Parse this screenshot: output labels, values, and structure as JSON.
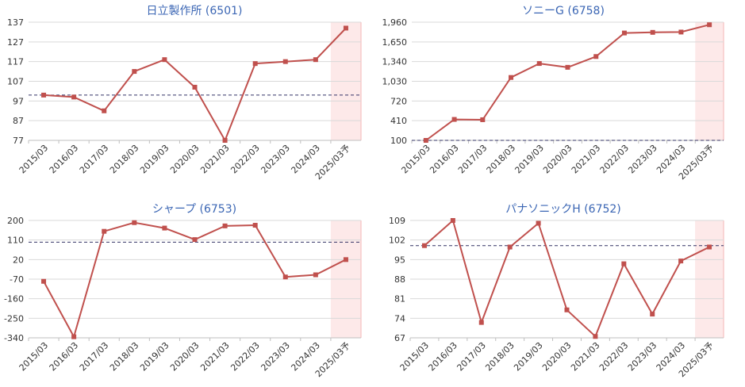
{
  "chart_data": [
    {
      "type": "line",
      "title": "日立製作所 (6501)",
      "categories": [
        "2015/03",
        "2016/03",
        "2017/03",
        "2018/03",
        "2019/03",
        "2020/03",
        "2021/03",
        "2022/03",
        "2023/03",
        "2024/03",
        "2025/03予"
      ],
      "series": [
        {
          "values": [
            100,
            99,
            92,
            112,
            118,
            104,
            77,
            116,
            117,
            118,
            134
          ]
        }
      ],
      "ylim": [
        77,
        137
      ],
      "yticks": [
        "137",
        "127",
        "117",
        "107",
        "97",
        "87",
        "77"
      ],
      "reference_line": 100,
      "forecast_category": "2025/03予"
    },
    {
      "type": "line",
      "title": "ソニーG (6758)",
      "categories": [
        "2015/03",
        "2016/03",
        "2017/03",
        "2018/03",
        "2019/03",
        "2020/03",
        "2021/03",
        "2022/03",
        "2023/03",
        "2024/03",
        "2025/03予"
      ],
      "series": [
        {
          "values": [
            100,
            430,
            425,
            1090,
            1310,
            1250,
            1420,
            1790,
            1800,
            1805,
            1920
          ]
        }
      ],
      "ylim": [
        100,
        1960
      ],
      "yticks": [
        "1,960",
        "1,650",
        "1,340",
        "1,030",
        "720",
        "410",
        "100"
      ],
      "reference_line": 100,
      "forecast_category": "2025/03予"
    },
    {
      "type": "line",
      "title": "シャープ (6753)",
      "categories": [
        "2015/03",
        "2016/03",
        "2017/03",
        "2018/03",
        "2019/03",
        "2020/03",
        "2021/03",
        "2022/03",
        "2023/03",
        "2024/03",
        "2025/03予"
      ],
      "series": [
        {
          "values": [
            -80,
            -335,
            150,
            190,
            165,
            112,
            175,
            178,
            -60,
            -50,
            20
          ]
        }
      ],
      "ylim": [
        -340,
        200
      ],
      "yticks": [
        "200",
        "110",
        "20",
        "-70",
        "-160",
        "-250",
        "-340"
      ],
      "reference_line": 100,
      "forecast_category": "2025/03予"
    },
    {
      "type": "line",
      "title": "パナソニックH (6752)",
      "categories": [
        "2015/03",
        "2016/03",
        "2017/03",
        "2018/03",
        "2019/03",
        "2020/03",
        "2021/03",
        "2022/03",
        "2023/03",
        "2024/03",
        "2025/03予"
      ],
      "series": [
        {
          "values": [
            100,
            109,
            72.5,
            99.5,
            108,
            77,
            67.5,
            93.5,
            75.5,
            94.5,
            99.5
          ]
        }
      ],
      "ylim": [
        67,
        109
      ],
      "yticks": [
        "109",
        "102",
        "95",
        "88",
        "81",
        "74",
        "67"
      ],
      "reference_line": 100,
      "forecast_category": "2025/03予"
    }
  ],
  "colors": {
    "line": "#c0504d",
    "forecast_band": "#fde9e9",
    "forecast_border": "#f4b6b6",
    "grid": "#d9d9d9",
    "reference": "#333366",
    "title": "#3b66b4"
  }
}
